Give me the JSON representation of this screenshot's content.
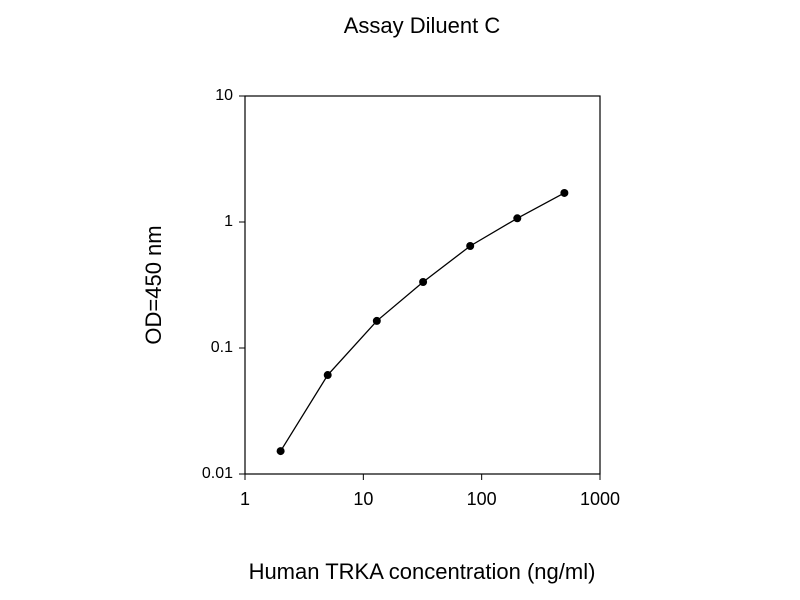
{
  "chart_data": {
    "type": "line",
    "title": "Assay Diluent C",
    "x_label": "Human TRKA concentration (ng/ml)",
    "y_label": "OD=450 nm",
    "x": [
      2,
      5,
      13,
      32,
      80,
      200,
      500
    ],
    "series": [
      {
        "color": "#000000",
        "values": [
          0.0152,
          0.061,
          0.164,
          0.334,
          0.645,
          1.07,
          1.7
        ]
      }
    ],
    "xlim": [
      1,
      1000
    ],
    "xticks": [
      1,
      10,
      100,
      1000
    ],
    "ylim": [
      0.01,
      10
    ],
    "yticks": [
      0.01,
      0.1,
      1,
      10
    ],
    "x_log": true,
    "y_log": true,
    "grid": false
  }
}
